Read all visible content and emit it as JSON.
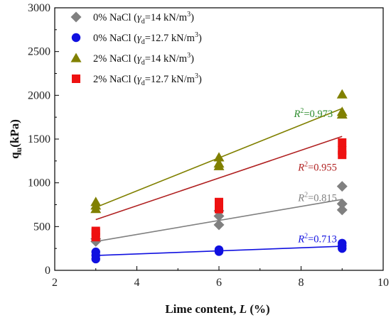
{
  "chart_data": {
    "type": "scatter",
    "xlabel_main": "Lime content,",
    "xlabel_var": "L",
    "xlabel_unit": "(%)",
    "ylabel_main": "q",
    "ylabel_sub": "u",
    "ylabel_unit": "(kPa)",
    "xlim": [
      2,
      10
    ],
    "ylim": [
      0,
      3000
    ],
    "xticks": [
      "2",
      "4",
      "6",
      "8",
      "10"
    ],
    "yticks": [
      "0",
      "500",
      "1000",
      "1500",
      "2000",
      "2500",
      "3000"
    ],
    "series": [
      {
        "name_pre": "0% NaCl (",
        "name_mid": "=14 kN/m",
        "name_post": ")",
        "marker": "diamond",
        "color": "#808080",
        "points": [
          [
            3,
            330
          ],
          [
            3,
            360
          ],
          [
            6,
            520
          ],
          [
            6,
            620
          ],
          [
            6,
            680
          ],
          [
            9,
            690
          ],
          [
            9,
            760
          ],
          [
            9,
            960
          ]
        ],
        "fit": [
          [
            3,
            330
          ],
          [
            9,
            810
          ]
        ],
        "fit_color": "#808080",
        "r2": "=0.815",
        "r2_color": "#808080"
      },
      {
        "name_pre": "0% NaCl (",
        "name_mid": "=12.7 kN/m",
        "name_post": ")",
        "marker": "circle",
        "color": "#1010e0",
        "points": [
          [
            3,
            130
          ],
          [
            3,
            170
          ],
          [
            3,
            210
          ],
          [
            6,
            215
          ],
          [
            6,
            235
          ],
          [
            9,
            250
          ],
          [
            9,
            280
          ],
          [
            9,
            310
          ]
        ],
        "fit": [
          [
            3,
            170
          ],
          [
            9,
            275
          ]
        ],
        "fit_color": "#1010e0",
        "r2": "=0.713",
        "r2_color": "#1010e0"
      },
      {
        "name_pre": "2% NaCl (",
        "name_mid": "=14 kN/m",
        "name_post": ")",
        "marker": "triangle",
        "color": "#808000",
        "points": [
          [
            3,
            700
          ],
          [
            3,
            740
          ],
          [
            3,
            780
          ],
          [
            6,
            1190
          ],
          [
            6,
            1220
          ],
          [
            6,
            1290
          ],
          [
            9,
            1780
          ],
          [
            9,
            1810
          ],
          [
            9,
            2010
          ]
        ],
        "fit": [
          [
            3,
            720
          ],
          [
            9,
            1850
          ]
        ],
        "fit_color": "#808000",
        "r2": "=0.973",
        "r2_color": "#2a8a2a"
      },
      {
        "name_pre": "2% NaCl (",
        "name_mid": "=12.7 kN/m",
        "name_post": ")",
        "marker": "square",
        "color": "#ee1111",
        "points": [
          [
            3,
            380
          ],
          [
            3,
            430
          ],
          [
            3,
            450
          ],
          [
            6,
            700
          ],
          [
            6,
            750
          ],
          [
            6,
            780
          ],
          [
            9,
            1320
          ],
          [
            9,
            1370
          ],
          [
            9,
            1460
          ]
        ],
        "fit": [
          [
            3,
            580
          ],
          [
            9,
            1530
          ]
        ],
        "fit_color": "#b02020",
        "r2": "=0.955",
        "r2_color": "#b02020"
      }
    ],
    "legend": {
      "position": "top-left",
      "gamma": "γ",
      "sub": "d",
      "sup": "3"
    },
    "r2_label": {
      "letter": "R",
      "sup": "2"
    }
  }
}
